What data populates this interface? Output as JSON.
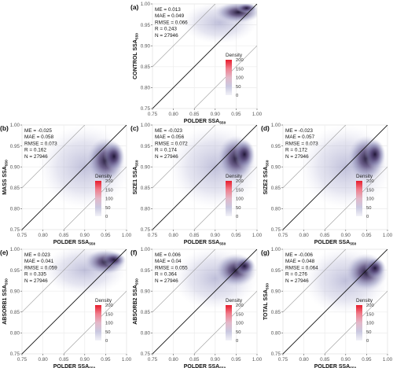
{
  "figure": {
    "x_axis_label": "POLDER SSA",
    "axis_label_subscript": "550",
    "legend_title": "Density",
    "legend_ticks": [
      "200",
      "150",
      "100",
      "50",
      "0"
    ],
    "x_ticks": [
      "0.75",
      "0.80",
      "0.85",
      "0.90",
      "0.95",
      "1.00"
    ],
    "y_ticks": [
      "0.75",
      "0.80",
      "0.85",
      "0.90",
      "0.95",
      "1.00"
    ]
  },
  "chart_data": [
    {
      "type": "heatmap",
      "panel": "(a)",
      "ylabel": "CONTROL SSA",
      "xlabel": "POLDER SSA",
      "xlim": [
        0.75,
        1.0
      ],
      "ylim": [
        0.75,
        1.0
      ],
      "stats": [
        "ME = 0.013",
        "MAE = 0.049",
        "RMSE = 0.066",
        "R = 0.243",
        "N = 27946"
      ],
      "density_range": [
        0,
        200
      ]
    },
    {
      "type": "heatmap",
      "panel": "(b)",
      "ylabel": "MASS SSA",
      "xlabel": "POLDER SSA",
      "xlim": [
        0.75,
        1.0
      ],
      "ylim": [
        0.75,
        1.0
      ],
      "stats": [
        "ME = -0.025",
        "MAE = 0.058",
        "RMSE = 0.073",
        "R = 0.162",
        "N = 27946"
      ],
      "density_range": [
        0,
        200
      ]
    },
    {
      "type": "heatmap",
      "panel": "(c)",
      "ylabel": "SIZE1 SSA",
      "xlabel": "POLDER SSA",
      "xlim": [
        0.75,
        1.0
      ],
      "ylim": [
        0.75,
        1.0
      ],
      "stats": [
        "ME = -0.023",
        "MAE = 0.056",
        "RMSE = 0.072",
        "R = 0.174",
        "N = 27946"
      ],
      "density_range": [
        0,
        200
      ]
    },
    {
      "type": "heatmap",
      "panel": "(d)",
      "ylabel": "SIZE2 SSA",
      "xlabel": "POLDER SSA",
      "xlim": [
        0.75,
        1.0
      ],
      "ylim": [
        0.75,
        1.0
      ],
      "stats": [
        "ME = -0.023",
        "MAE = 0.057",
        "RMSE = 0.073",
        "R = 0.172",
        "N = 27946"
      ],
      "density_range": [
        0,
        200
      ]
    },
    {
      "type": "heatmap",
      "panel": "(e)",
      "ylabel": "ABSORB1 SSA",
      "xlabel": "POLDER SSA",
      "xlim": [
        0.75,
        1.0
      ],
      "ylim": [
        0.75,
        1.0
      ],
      "stats": [
        "ME = 0.023",
        "MAE = 0.041",
        "RMSE = 0.059",
        "R = 0.335",
        "N = 27946"
      ],
      "density_range": [
        0,
        200
      ]
    },
    {
      "type": "heatmap",
      "panel": "(f)",
      "ylabel": "ABSORB2 SSA",
      "xlabel": "POLDER SSA",
      "xlim": [
        0.75,
        1.0
      ],
      "ylim": [
        0.75,
        1.0
      ],
      "stats": [
        "ME = 0.006",
        "MAE = 0.04",
        "RMSE = 0.055",
        "R = 0.364",
        "N = 27946"
      ],
      "density_range": [
        0,
        200
      ]
    },
    {
      "type": "heatmap",
      "panel": "(g)",
      "ylabel": "TOTAL SSA",
      "xlabel": "POLDER SSA",
      "xlim": [
        0.75,
        1.0
      ],
      "ylim": [
        0.75,
        1.0
      ],
      "stats": [
        "ME = -0.006",
        "MAE = 0.048",
        "RMSE = 0.064",
        "R = 0.276",
        "N = 27946"
      ],
      "density_range": [
        0,
        200
      ]
    }
  ]
}
